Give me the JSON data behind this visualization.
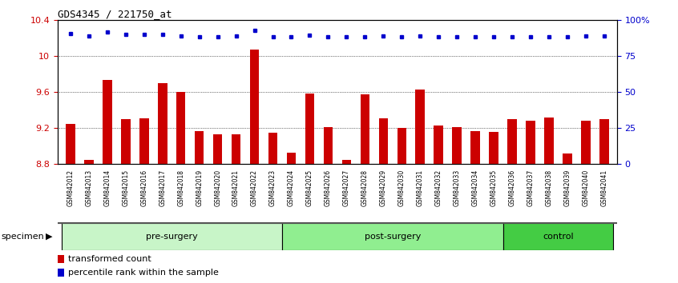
{
  "title": "GDS4345 / 221750_at",
  "samples": [
    "GSM842012",
    "GSM842013",
    "GSM842014",
    "GSM842015",
    "GSM842016",
    "GSM842017",
    "GSM842018",
    "GSM842019",
    "GSM842020",
    "GSM842021",
    "GSM842022",
    "GSM842023",
    "GSM842024",
    "GSM842025",
    "GSM842026",
    "GSM842027",
    "GSM842028",
    "GSM842029",
    "GSM842030",
    "GSM842031",
    "GSM842032",
    "GSM842033",
    "GSM842034",
    "GSM842035",
    "GSM842036",
    "GSM842037",
    "GSM842038",
    "GSM842039",
    "GSM842040",
    "GSM842041"
  ],
  "bar_values": [
    9.25,
    8.85,
    9.73,
    9.3,
    9.31,
    9.7,
    9.6,
    9.17,
    9.13,
    9.13,
    10.07,
    9.15,
    8.93,
    9.58,
    9.21,
    8.85,
    9.57,
    9.31,
    9.2,
    9.63,
    9.23,
    9.21,
    9.17,
    9.16,
    9.3,
    9.28,
    9.32,
    8.92,
    9.28,
    9.3
  ],
  "dot_y_values": [
    10.245,
    10.22,
    10.265,
    10.235,
    10.235,
    10.235,
    10.22,
    10.215,
    10.215,
    10.22,
    10.28,
    10.215,
    10.215,
    10.23,
    10.215,
    10.215,
    10.215,
    10.22,
    10.215,
    10.22,
    10.215,
    10.215,
    10.215,
    10.215,
    10.215,
    10.215,
    10.215,
    10.215,
    10.22,
    10.22
  ],
  "groups": [
    {
      "label": "pre-surgery",
      "start": 0,
      "end": 12,
      "color": "#c8f5c8"
    },
    {
      "label": "post-surgery",
      "start": 12,
      "end": 24,
      "color": "#90ee90"
    },
    {
      "label": "control",
      "start": 24,
      "end": 30,
      "color": "#44cc44"
    }
  ],
  "ylim": [
    8.8,
    10.4
  ],
  "yticks": [
    8.8,
    9.2,
    9.6,
    10.0,
    10.4
  ],
  "ytick_labels": [
    "8.8",
    "9.2",
    "9.6",
    "10",
    "10.4"
  ],
  "y2lim": [
    0,
    100
  ],
  "y2ticks": [
    0,
    25,
    50,
    75,
    100
  ],
  "y2tick_labels": [
    "0",
    "25",
    "50",
    "75",
    "100%"
  ],
  "bar_color": "#cc0000",
  "dot_color": "#0000cc",
  "specimen_label": "specimen"
}
